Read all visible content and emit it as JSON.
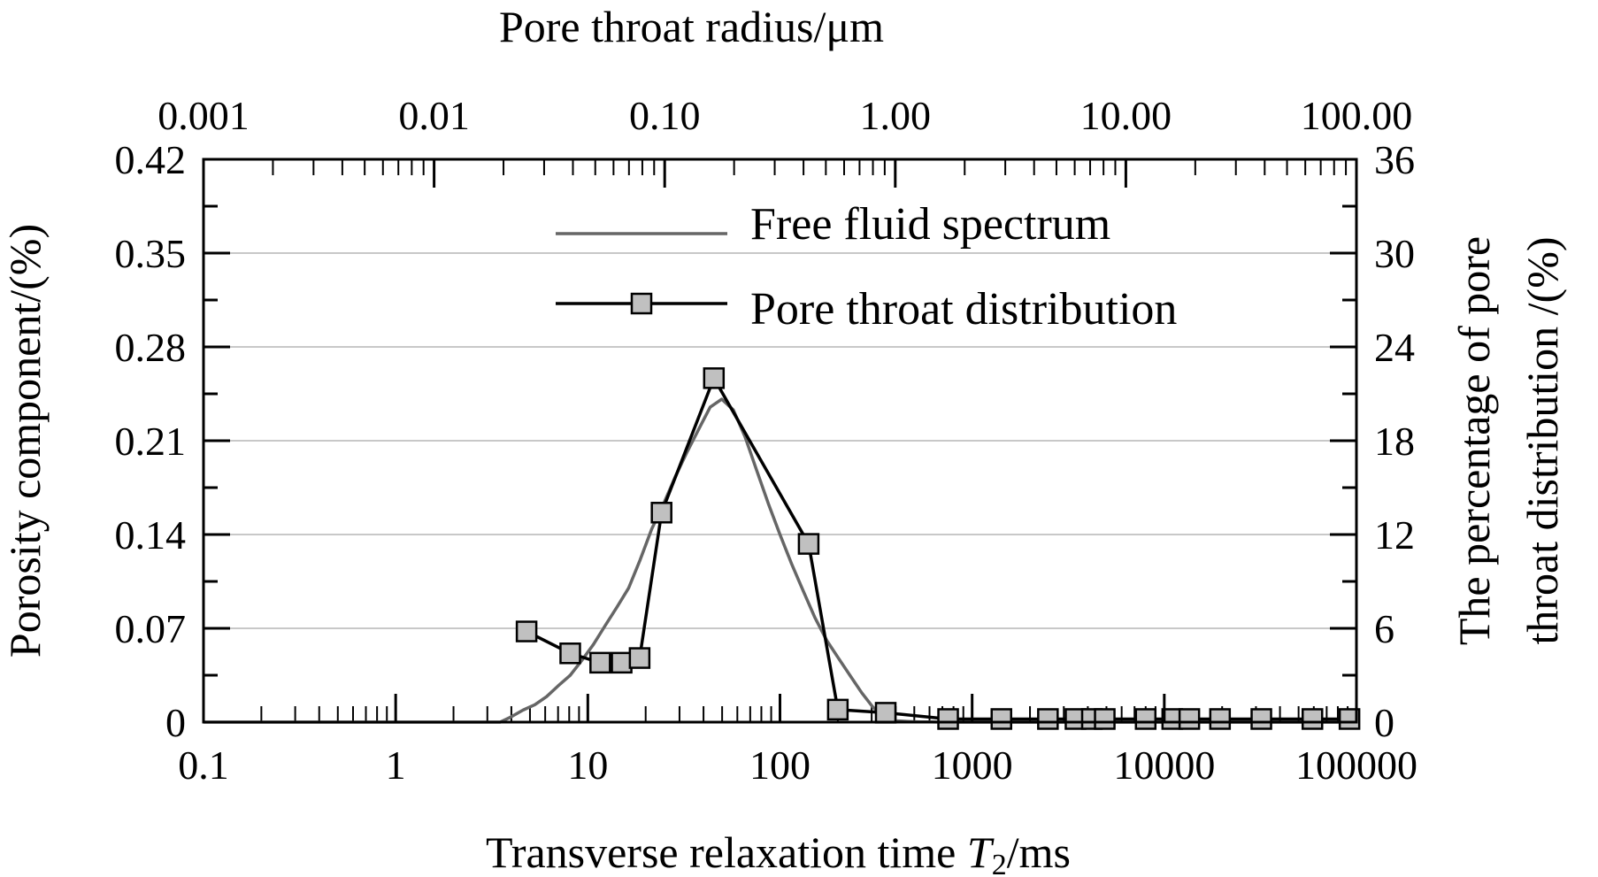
{
  "chart_data": {
    "type": "line",
    "title": "",
    "xlabel": "Transverse relaxation time T2/ms",
    "xlabel_parts": {
      "pre": "Transverse relaxation time ",
      "var": "T",
      "sub": "2",
      "post": "/ms"
    },
    "x2label": "Pore throat radius/μm",
    "ylabel": "Porosity component/(%)",
    "y2label_line1": "The percentage of pore",
    "y2label_line2": "throat distribution /(%)",
    "x_scale": "log",
    "xlim": [
      0.1,
      100000
    ],
    "x2lim": [
      0.001,
      100
    ],
    "ylim": [
      0,
      0.42
    ],
    "y2lim": [
      0,
      36
    ],
    "grid": "horizontal",
    "legend_position": "top-center",
    "x_ticks": [
      "0.1",
      "1",
      "10",
      "100",
      "1000",
      "10000",
      "100000"
    ],
    "x2_ticks": [
      "0.001",
      "0.01",
      "0.10",
      "1.00",
      "10.00",
      "100.00"
    ],
    "y_ticks": [
      "0",
      "0.07",
      "0.14",
      "0.21",
      "0.28",
      "0.35",
      "0.42"
    ],
    "y2_ticks": [
      "0",
      "6",
      "12",
      "18",
      "24",
      "30",
      "36"
    ],
    "series": [
      {
        "name": "Free fluid spectrum",
        "axis": "left",
        "color": "#666666",
        "x": [
          0.1,
          3.5,
          4.0,
          4.6,
          5.3,
          6.1,
          7.0,
          8.1,
          9.3,
          10.7,
          12.3,
          14.2,
          16.3,
          18.7,
          21.5,
          24.8,
          28.5,
          32.7,
          37.6,
          43.3,
          49.8,
          57.2,
          65.8,
          75.6,
          87.0,
          100,
          115,
          132,
          152,
          175,
          201,
          231,
          266,
          305,
          351,
          404,
          464,
          534,
          614,
          706,
          811,
          1000,
          100000
        ],
        "y": [
          0,
          0,
          0.004,
          0.009,
          0.013,
          0.019,
          0.027,
          0.035,
          0.046,
          0.058,
          0.072,
          0.086,
          0.1,
          0.121,
          0.144,
          0.163,
          0.183,
          0.201,
          0.218,
          0.235,
          0.241,
          0.233,
          0.213,
          0.188,
          0.163,
          0.14,
          0.118,
          0.098,
          0.078,
          0.061,
          0.048,
          0.035,
          0.022,
          0.011,
          0.004,
          0.001,
          0.0005,
          0.0002,
          0.0001,
          0,
          0,
          0,
          0
        ]
      },
      {
        "name": "Pore throat distribution",
        "axis": "right",
        "color": "#000000",
        "marker_color": "#c0c0c0",
        "x": [
          4.8,
          8.1,
          11.6,
          15.0,
          18.6,
          24.2,
          45.3,
          141,
          200,
          355,
          750,
          1420,
          2480,
          3450,
          4200,
          4900,
          8000,
          11000,
          13500,
          19500,
          32000,
          59000,
          92000
        ],
        "y": [
          5.8,
          4.4,
          3.8,
          3.8,
          4.1,
          13.4,
          22.0,
          11.4,
          0.8,
          0.6,
          0.2,
          0.2,
          0.2,
          0.2,
          0.2,
          0.2,
          0.2,
          0.2,
          0.2,
          0.2,
          0.2,
          0.2,
          0.2
        ]
      }
    ]
  }
}
